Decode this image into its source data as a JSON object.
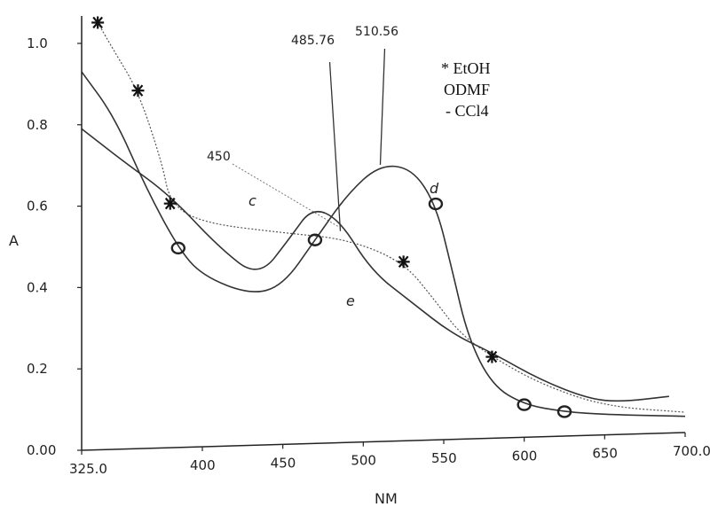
{
  "chart_data": {
    "type": "line",
    "xlabel": "NM",
    "ylabel": "A",
    "xlim": [
      325,
      700
    ],
    "ylim": [
      0,
      1.05
    ],
    "x_ticks": [
      {
        "value": 325,
        "label": "325.0"
      },
      {
        "value": 400,
        "label": "400"
      },
      {
        "value": 450,
        "label": "450"
      },
      {
        "value": 500,
        "label": "500"
      },
      {
        "value": 550,
        "label": "550"
      },
      {
        "value": 600,
        "label": "600"
      },
      {
        "value": 650,
        "label": "650"
      },
      {
        "value": 700,
        "label": "700.0"
      }
    ],
    "y_ticks": [
      {
        "value": 0,
        "label": "0.00"
      },
      {
        "value": 0.2,
        "label": "0.2"
      },
      {
        "value": 0.4,
        "label": "0.4"
      },
      {
        "value": 0.6,
        "label": "0.6"
      },
      {
        "value": 0.8,
        "label": "0.8"
      },
      {
        "value": 1.0,
        "label": "1.0"
      }
    ],
    "legend": [
      "* EtOH",
      "ODMF",
      "- CCl4"
    ],
    "legend_position": "top-right",
    "annotations": [
      {
        "text": "485.76",
        "x": 485.76
      },
      {
        "text": "510.56",
        "x": 510.56
      },
      {
        "text": "450",
        "x": 450
      }
    ],
    "curve_labels": [
      "c",
      "d",
      "e"
    ],
    "series": [
      {
        "marker": "star",
        "style": "dotted",
        "points": [
          [
            335,
            1.05
          ],
          [
            345,
            0.98
          ],
          [
            360,
            0.88
          ],
          [
            375,
            0.7
          ],
          [
            380,
            0.6
          ],
          [
            400,
            0.55
          ],
          [
            450,
            0.52
          ],
          [
            490,
            0.5
          ],
          [
            525,
            0.44
          ],
          [
            545,
            0.34
          ],
          [
            560,
            0.26
          ],
          [
            580,
            0.2
          ],
          [
            610,
            0.13
          ],
          [
            650,
            0.07
          ],
          [
            700,
            0.05
          ]
        ]
      },
      {
        "marker": "circle",
        "style": "solid",
        "points": [
          [
            325,
            0.93
          ],
          [
            345,
            0.82
          ],
          [
            365,
            0.64
          ],
          [
            385,
            0.49
          ],
          [
            400,
            0.42
          ],
          [
            430,
            0.37
          ],
          [
            450,
            0.39
          ],
          [
            470,
            0.5
          ],
          [
            490,
            0.61
          ],
          [
            510,
            0.68
          ],
          [
            530,
            0.67
          ],
          [
            545,
            0.58
          ],
          [
            555,
            0.42
          ],
          [
            565,
            0.25
          ],
          [
            580,
            0.13
          ],
          [
            600,
            0.08
          ],
          [
            625,
            0.06
          ],
          [
            650,
            0.05
          ],
          [
            700,
            0.04
          ]
        ]
      },
      {
        "marker": "none",
        "style": "solid",
        "points": [
          [
            325,
            0.79
          ],
          [
            350,
            0.71
          ],
          [
            380,
            0.62
          ],
          [
            410,
            0.49
          ],
          [
            435,
            0.41
          ],
          [
            455,
            0.51
          ],
          [
            468,
            0.58
          ],
          [
            485,
            0.55
          ],
          [
            505,
            0.42
          ],
          [
            530,
            0.34
          ],
          [
            555,
            0.26
          ],
          [
            580,
            0.21
          ],
          [
            610,
            0.14
          ],
          [
            640,
            0.09
          ],
          [
            660,
            0.08
          ],
          [
            690,
            0.09
          ]
        ]
      }
    ]
  }
}
